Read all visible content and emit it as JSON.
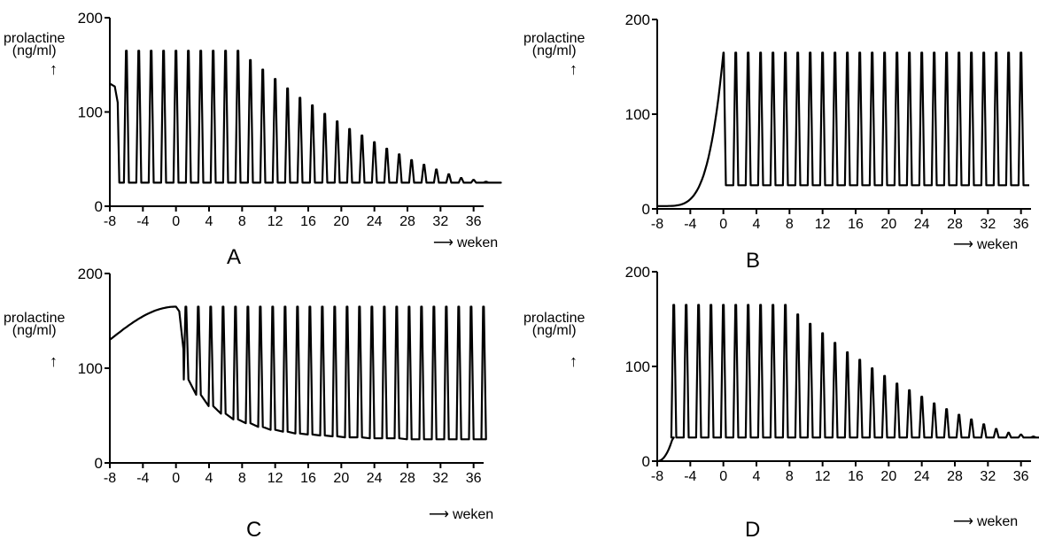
{
  "y_label_line1": "prolactine",
  "y_label_line2": "(ng/ml)",
  "y_arrow": "↑",
  "x_label": "weken",
  "x_arrow": "⟶",
  "chart_data": [
    {
      "type": "line",
      "label": "A",
      "x_ticks": [
        -8,
        -4,
        0,
        4,
        8,
        12,
        16,
        20,
        24,
        28,
        32,
        36
      ],
      "y_ticks": [
        0,
        100,
        200
      ],
      "xlim": [
        -8,
        37
      ],
      "ylim": [
        0,
        200
      ],
      "baseline": 25,
      "initial_level": 130,
      "pulse_start_week": -6,
      "pulse_interval_weeks": 1.5,
      "pulse_peaks": [
        165,
        165,
        165,
        165,
        165,
        165,
        165,
        165,
        165,
        165,
        155,
        145,
        135,
        125,
        115,
        107,
        98,
        90,
        82,
        75,
        68,
        61,
        55,
        49,
        44,
        39,
        34,
        30,
        28,
        26,
        25
      ]
    },
    {
      "type": "line",
      "label": "B",
      "x_ticks": [
        -8,
        -4,
        0,
        4,
        8,
        12,
        16,
        20,
        24,
        28,
        32,
        36
      ],
      "y_ticks": [
        0,
        100,
        200
      ],
      "xlim": [
        -8,
        37
      ],
      "ylim": [
        0,
        200
      ],
      "baseline": 25,
      "rise_start": [
        -8,
        0
      ],
      "rise_end": [
        0,
        165
      ],
      "pulse_start_week": 0,
      "pulse_interval_weeks": 1.5,
      "pulse_peaks": [
        165,
        165,
        165,
        165,
        165,
        165,
        165,
        165,
        165,
        165,
        165,
        165,
        165,
        165,
        165,
        165,
        165,
        165,
        165,
        165,
        165,
        165,
        165,
        165,
        165
      ]
    },
    {
      "type": "line",
      "label": "C",
      "x_ticks": [
        -8,
        -4,
        0,
        4,
        8,
        12,
        16,
        20,
        24,
        28,
        32,
        36
      ],
      "y_ticks": [
        0,
        100,
        200
      ],
      "xlim": [
        -8,
        37
      ],
      "ylim": [
        0,
        200
      ],
      "start_level": 130,
      "peak_week": 0,
      "peak_level": 165,
      "pulse_start_week": 1.2,
      "pulse_interval_weeks": 1.5,
      "pulse_peak": 165,
      "trough_levels": [
        88,
        72,
        60,
        52,
        46,
        42,
        38,
        35,
        33,
        31,
        30,
        29,
        28,
        27,
        27,
        26,
        26,
        26,
        25,
        25,
        25,
        25,
        25,
        25,
        25
      ]
    },
    {
      "type": "line",
      "label": "D",
      "x_ticks": [
        -8,
        -4,
        0,
        4,
        8,
        12,
        16,
        20,
        24,
        28,
        32,
        36
      ],
      "y_ticks": [
        0,
        100,
        200
      ],
      "xlim": [
        -8,
        37
      ],
      "ylim": [
        0,
        200
      ],
      "baseline": 25,
      "initial_level": 0,
      "pulse_start_week": -6,
      "pulse_interval_weeks": 1.5,
      "pulse_peaks": [
        165,
        165,
        165,
        165,
        165,
        165,
        165,
        165,
        165,
        165,
        155,
        145,
        135,
        125,
        115,
        107,
        98,
        90,
        82,
        75,
        68,
        61,
        55,
        49,
        44,
        39,
        34,
        30,
        28,
        26,
        25
      ]
    }
  ]
}
